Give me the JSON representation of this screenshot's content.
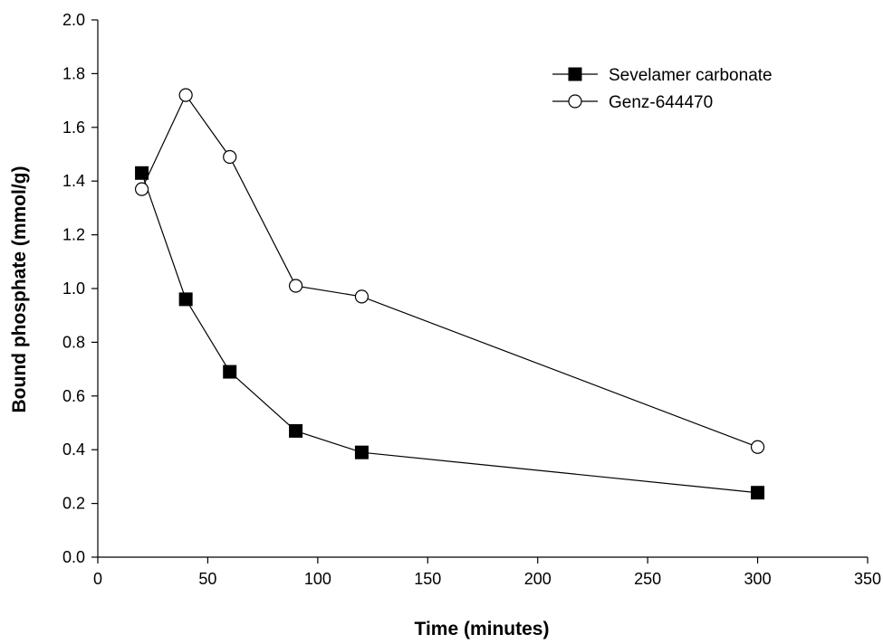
{
  "chart_data": {
    "type": "line",
    "title": "",
    "xlabel": "Time (minutes)",
    "ylabel": "Bound phosphate (mmol/g)",
    "xlim": [
      0,
      350
    ],
    "ylim": [
      0.0,
      2.0
    ],
    "x_ticks": [
      "0",
      "50",
      "100",
      "150",
      "200",
      "250",
      "300",
      "350"
    ],
    "y_ticks": [
      "0.0",
      "0.2",
      "0.4",
      "0.6",
      "0.8",
      "1.0",
      "1.2",
      "1.4",
      "1.6",
      "1.8",
      "2.0"
    ],
    "grid": false,
    "legend_position": "top-right",
    "series": [
      {
        "name": "Sevelamer carbonate",
        "marker": "filled-square",
        "color": "#000000",
        "x": [
          20,
          40,
          60,
          90,
          120,
          300
        ],
        "y": [
          1.43,
          0.96,
          0.69,
          0.47,
          0.39,
          0.24
        ]
      },
      {
        "name": "Genz-644470",
        "marker": "open-circle",
        "color": "#000000",
        "x": [
          20,
          40,
          60,
          90,
          120,
          300
        ],
        "y": [
          1.37,
          1.72,
          1.49,
          1.01,
          0.97,
          0.41
        ]
      }
    ]
  }
}
